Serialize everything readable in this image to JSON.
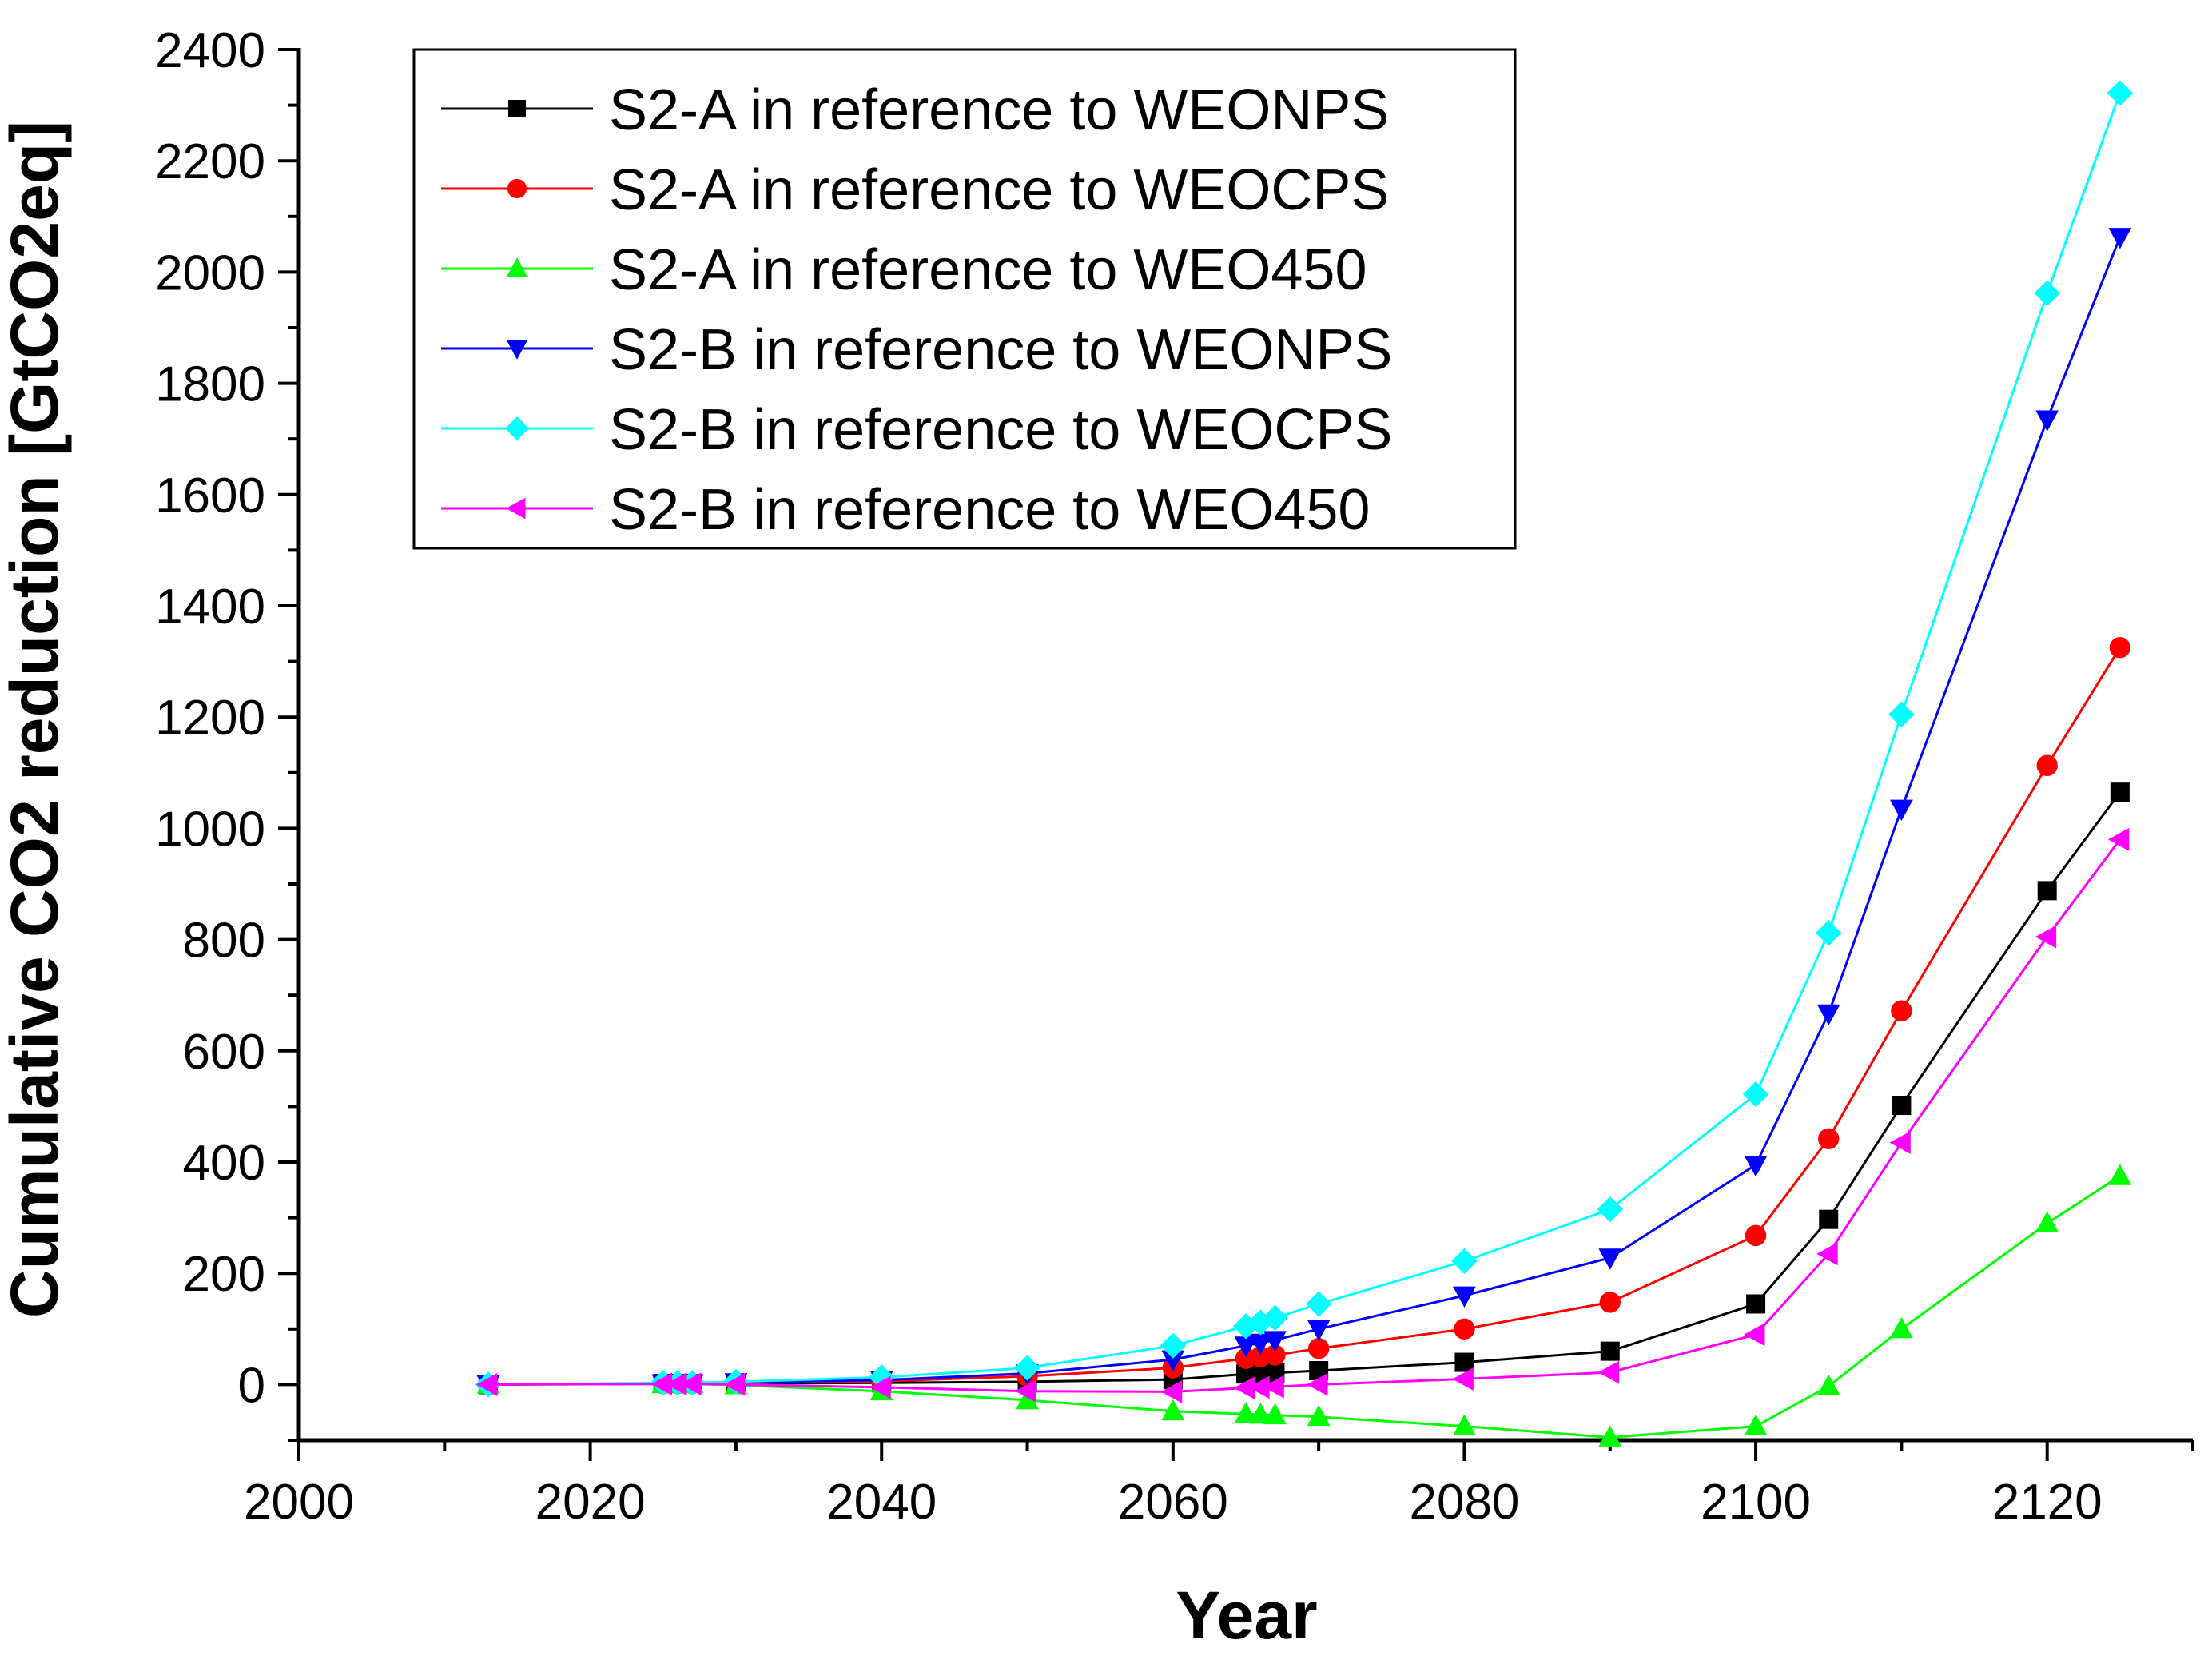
{
  "chart_data": {
    "type": "line",
    "title": "",
    "xlabel": "Year",
    "ylabel": "Cumulative CO2 reduction [GtCO2eq]",
    "xlim": [
      2000,
      2130
    ],
    "ylim": [
      -100,
      2400
    ],
    "xticks": [
      2000,
      2020,
      2040,
      2060,
      2080,
      2100,
      2120
    ],
    "yticks": [
      0,
      200,
      400,
      600,
      800,
      1000,
      1200,
      1400,
      1600,
      1800,
      2000,
      2200,
      2400
    ],
    "grid": false,
    "legend_position": "top-left (inside plot)",
    "series": [
      {
        "name": "S2-A in reference to WEONPS",
        "color": "#000000",
        "marker": "square",
        "x": [
          2013,
          2025,
          2026,
          2027,
          2030,
          2040,
          2050,
          2060,
          2065,
          2066,
          2067,
          2070,
          2080,
          2090,
          2100,
          2105,
          2110,
          2120,
          2125
        ],
        "y": [
          0,
          2,
          2,
          2,
          2,
          3,
          5,
          9,
          19,
          20,
          21,
          25,
          40,
          60,
          145,
          297,
          502,
          888,
          1065
        ]
      },
      {
        "name": "S2-A in reference to WEOCPS",
        "color": "#ff0000",
        "marker": "circle",
        "x": [
          2013,
          2025,
          2026,
          2027,
          2030,
          2040,
          2050,
          2060,
          2065,
          2066,
          2067,
          2070,
          2080,
          2090,
          2100,
          2105,
          2110,
          2120,
          2125
        ],
        "y": [
          0,
          2,
          2,
          2,
          3,
          6,
          15,
          30,
          47,
          50,
          53,
          65,
          100,
          148,
          268,
          442,
          672,
          1113,
          1325
        ]
      },
      {
        "name": "S2-A in reference to WEO450",
        "color": "#00ff00",
        "marker": "triangle-up",
        "x": [
          2013,
          2025,
          2026,
          2027,
          2030,
          2040,
          2050,
          2060,
          2065,
          2066,
          2067,
          2070,
          2080,
          2090,
          2100,
          2105,
          2110,
          2120,
          2125
        ],
        "y": [
          0,
          1,
          1,
          1,
          -1,
          -12,
          -28,
          -48,
          -53,
          -54,
          -55,
          -58,
          -75,
          -95,
          -75,
          -3,
          100,
          290,
          375
        ]
      },
      {
        "name": "S2-B in reference to WEONPS",
        "color": "#0000ff",
        "marker": "triangle-down",
        "x": [
          2013,
          2025,
          2026,
          2027,
          2030,
          2040,
          2050,
          2060,
          2065,
          2066,
          2067,
          2070,
          2080,
          2090,
          2100,
          2105,
          2110,
          2120,
          2125
        ],
        "y": [
          0,
          2,
          2,
          2,
          4,
          8,
          20,
          45,
          70,
          75,
          80,
          100,
          160,
          228,
          395,
          667,
          1035,
          1735,
          2063
        ]
      },
      {
        "name": "S2-B in reference to WEOCPS",
        "color": "#00ffff",
        "marker": "diamond",
        "x": [
          2013,
          2025,
          2026,
          2027,
          2030,
          2040,
          2050,
          2060,
          2065,
          2066,
          2067,
          2070,
          2080,
          2090,
          2100,
          2105,
          2110,
          2120,
          2125
        ],
        "y": [
          0,
          3,
          3,
          3,
          5,
          13,
          30,
          70,
          105,
          112,
          120,
          145,
          222,
          315,
          522,
          812,
          1205,
          1962,
          2322
        ]
      },
      {
        "name": "S2-B in reference to WEO450",
        "color": "#ff00ff",
        "marker": "triangle-left",
        "x": [
          2013,
          2025,
          2026,
          2027,
          2030,
          2040,
          2050,
          2060,
          2065,
          2066,
          2067,
          2070,
          2080,
          2090,
          2100,
          2105,
          2110,
          2120,
          2125
        ],
        "y": [
          0,
          1,
          1,
          1,
          0,
          -5,
          -12,
          -13,
          -6,
          -5,
          -4,
          0,
          10,
          22,
          90,
          235,
          435,
          805,
          980
        ]
      }
    ]
  }
}
